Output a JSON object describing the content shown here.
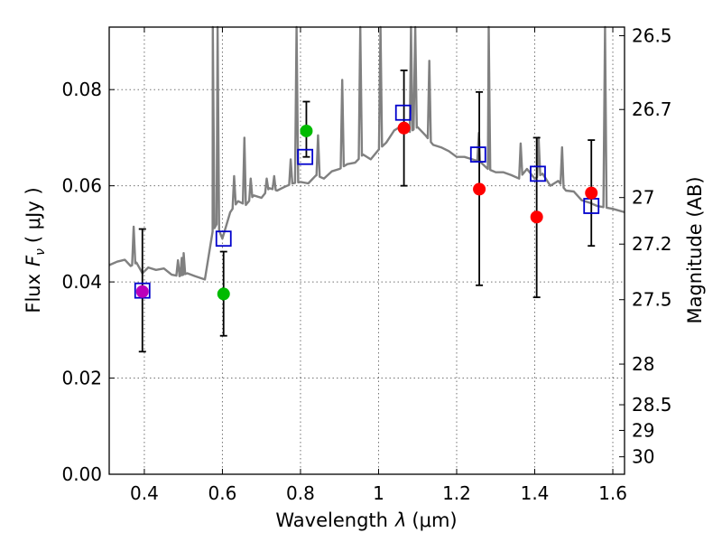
{
  "chart_data": {
    "type": "scatter",
    "title": "",
    "xlabel": "Wavelength",
    "xlabel_symbol": "λ",
    "xlabel_unit": "(μm)",
    "ylabel": "Flux",
    "ylabel_symbol": "F",
    "ylabel_subscript": "ν",
    "ylabel_unit": "( μJy )",
    "y2label": "Magnitude (AB)",
    "xlim": [
      0.31,
      1.63
    ],
    "ylim": [
      0.0,
      0.093
    ],
    "grid": true,
    "x_ticks": [
      0.4,
      0.6,
      0.8,
      1.0,
      1.2,
      1.4,
      1.6
    ],
    "x_tick_labels": [
      "0.4",
      "0.6",
      "0.8",
      "1",
      "1.2",
      "1.4",
      "1.6"
    ],
    "y_ticks": [
      0.0,
      0.02,
      0.04,
      0.06,
      0.08
    ],
    "y_tick_labels": [
      "0.00",
      "0.02",
      "0.04",
      "0.06",
      "0.08"
    ],
    "y2_ticks": [
      26.5,
      26.7,
      27.0,
      27.2,
      27.5,
      28.0,
      28.5,
      29.0,
      30.0
    ],
    "y2_tick_labels": [
      "26.5",
      "26.7",
      "27",
      "27.2",
      "27.5",
      "28",
      "28.5",
      "29",
      "30"
    ],
    "colors": {
      "spectrum": "#808080",
      "errorbar": "#000000",
      "model_box": "#0000cc",
      "green": "#00bb00",
      "red": "#ff0000",
      "magenta": "#bb00bb"
    },
    "observed": [
      {
        "x": 0.395,
        "y": 0.038,
        "yerr_low": 0.0255,
        "yerr_high": 0.051,
        "color": "magenta"
      },
      {
        "x": 0.603,
        "y": 0.0375,
        "yerr_low": 0.0288,
        "yerr_high": 0.0463,
        "color": "green"
      },
      {
        "x": 0.815,
        "y": 0.0714,
        "yerr_low": 0.066,
        "yerr_high": 0.0775,
        "color": "green"
      },
      {
        "x": 1.065,
        "y": 0.072,
        "yerr_low": 0.06,
        "yerr_high": 0.084,
        "color": "red"
      },
      {
        "x": 1.258,
        "y": 0.0593,
        "yerr_low": 0.0393,
        "yerr_high": 0.0795,
        "color": "red"
      },
      {
        "x": 1.405,
        "y": 0.0535,
        "yerr_low": 0.0368,
        "yerr_high": 0.07,
        "color": "red"
      },
      {
        "x": 1.545,
        "y": 0.0585,
        "yerr_low": 0.0475,
        "yerr_high": 0.0695,
        "color": "red"
      }
    ],
    "model": [
      {
        "x": 0.395,
        "y": 0.0382
      },
      {
        "x": 0.603,
        "y": 0.049
      },
      {
        "x": 0.812,
        "y": 0.066
      },
      {
        "x": 1.063,
        "y": 0.0752
      },
      {
        "x": 1.255,
        "y": 0.0665
      },
      {
        "x": 1.408,
        "y": 0.0625
      },
      {
        "x": 1.545,
        "y": 0.0558
      }
    ],
    "spectrum": {
      "x": [
        0.31,
        0.33,
        0.35,
        0.365,
        0.38,
        0.395,
        0.41,
        0.43,
        0.45,
        0.47,
        0.49,
        0.51,
        0.53,
        0.555,
        0.575,
        0.585,
        0.6,
        0.62,
        0.64,
        0.66,
        0.68,
        0.7,
        0.72,
        0.74,
        0.76,
        0.78,
        0.8,
        0.82,
        0.84,
        0.86,
        0.88,
        0.9,
        0.92,
        0.94,
        0.96,
        0.98,
        1.0,
        1.02,
        1.04,
        1.06,
        1.08,
        1.1,
        1.12,
        1.14,
        1.16,
        1.18,
        1.2,
        1.22,
        1.24,
        1.26,
        1.28,
        1.3,
        1.32,
        1.34,
        1.36,
        1.38,
        1.4,
        1.42,
        1.44,
        1.46,
        1.48,
        1.5,
        1.52,
        1.54,
        1.56,
        1.58,
        1.6,
        1.63
      ],
      "y": [
        0.0435,
        0.0442,
        0.0446,
        0.0433,
        0.044,
        0.0418,
        0.043,
        0.0425,
        0.0428,
        0.0415,
        0.0412,
        0.0418,
        0.0412,
        0.0405,
        0.0505,
        0.052,
        0.049,
        0.0545,
        0.0568,
        0.056,
        0.058,
        0.0575,
        0.0595,
        0.059,
        0.0598,
        0.0605,
        0.0608,
        0.0605,
        0.0622,
        0.0615,
        0.063,
        0.0635,
        0.0645,
        0.0648,
        0.0665,
        0.0655,
        0.0675,
        0.069,
        0.0715,
        0.0725,
        0.0712,
        0.0722,
        0.0705,
        0.0685,
        0.068,
        0.0672,
        0.066,
        0.066,
        0.0655,
        0.065,
        0.0635,
        0.0628,
        0.0628,
        0.0622,
        0.0615,
        0.0635,
        0.0615,
        0.0625,
        0.06,
        0.061,
        0.059,
        0.0588,
        0.057,
        0.0565,
        0.0558,
        0.0555,
        0.0552,
        0.0545
      ]
    },
    "emission_lines": [
      {
        "x": 0.3727,
        "peak": 0.0515
      },
      {
        "x": 0.4861,
        "peak": 0.0445
      },
      {
        "x": 0.4959,
        "peak": 0.045
      },
      {
        "x": 0.5007,
        "peak": 0.046
      },
      {
        "x": 0.5755,
        "peak": 0.093
      },
      {
        "x": 0.5876,
        "peak": 0.093
      },
      {
        "x": 0.63,
        "peak": 0.062
      },
      {
        "x": 0.6563,
        "peak": 0.07
      },
      {
        "x": 0.6725,
        "peak": 0.0615
      },
      {
        "x": 0.7135,
        "peak": 0.0615
      },
      {
        "x": 0.7325,
        "peak": 0.062
      },
      {
        "x": 0.775,
        "peak": 0.0655
      },
      {
        "x": 0.79,
        "peak": 0.093
      },
      {
        "x": 0.845,
        "peak": 0.0705
      },
      {
        "x": 0.9069,
        "peak": 0.082
      },
      {
        "x": 0.9532,
        "peak": 0.093
      },
      {
        "x": 1.0049,
        "peak": 0.093
      },
      {
        "x": 1.083,
        "peak": 0.093
      },
      {
        "x": 1.0938,
        "peak": 0.093
      },
      {
        "x": 1.13,
        "peak": 0.086
      },
      {
        "x": 1.282,
        "peak": 0.093
      },
      {
        "x": 1.257,
        "peak": 0.071
      },
      {
        "x": 1.364,
        "peak": 0.0688
      },
      {
        "x": 1.41,
        "peak": 0.07
      },
      {
        "x": 1.47,
        "peak": 0.068
      },
      {
        "x": 1.58,
        "peak": 0.093
      }
    ]
  }
}
